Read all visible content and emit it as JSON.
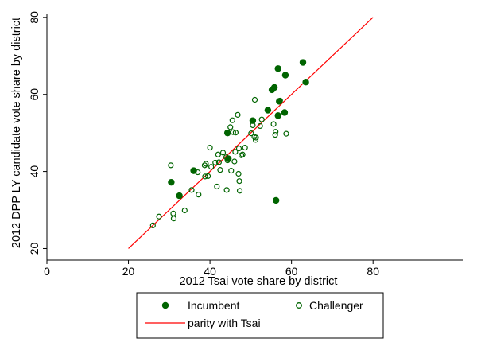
{
  "chart_data": {
    "type": "scatter",
    "xlabel": "2012 Tsai vote share by district",
    "ylabel": "2012 DPP LY candidate vote share by district",
    "xlim": [
      0,
      102
    ],
    "ylim": [
      17,
      81
    ],
    "xticks": [
      0,
      20,
      40,
      60,
      80
    ],
    "yticks": [
      20,
      40,
      60,
      80
    ],
    "grid": false,
    "legend_position": "bottom",
    "series": [
      {
        "name": "Incumbent",
        "marker": "filled-circle",
        "color": "#006400",
        "points": [
          {
            "x": 30.5,
            "y": 37.2
          },
          {
            "x": 32.5,
            "y": 33.7
          },
          {
            "x": 36.0,
            "y": 40.2
          },
          {
            "x": 44.3,
            "y": 50.0
          },
          {
            "x": 44.5,
            "y": 43.3
          },
          {
            "x": 50.5,
            "y": 53.2
          },
          {
            "x": 54.2,
            "y": 55.9
          },
          {
            "x": 55.2,
            "y": 61.2
          },
          {
            "x": 55.8,
            "y": 61.8
          },
          {
            "x": 56.2,
            "y": 32.5
          },
          {
            "x": 56.7,
            "y": 54.5
          },
          {
            "x": 56.7,
            "y": 66.7
          },
          {
            "x": 57.0,
            "y": 58.2
          },
          {
            "x": 58.3,
            "y": 55.3
          },
          {
            "x": 58.5,
            "y": 65.0
          },
          {
            "x": 62.8,
            "y": 68.3
          },
          {
            "x": 63.5,
            "y": 63.2
          }
        ]
      },
      {
        "name": "Challenger",
        "marker": "hollow-circle",
        "color": "#006400",
        "points": [
          {
            "x": 26.0,
            "y": 26.0
          },
          {
            "x": 27.5,
            "y": 28.3
          },
          {
            "x": 31.0,
            "y": 29.1
          },
          {
            "x": 31.1,
            "y": 27.8
          },
          {
            "x": 30.4,
            "y": 41.6
          },
          {
            "x": 33.8,
            "y": 29.9
          },
          {
            "x": 35.5,
            "y": 35.2
          },
          {
            "x": 37.2,
            "y": 34.0
          },
          {
            "x": 37.0,
            "y": 39.8
          },
          {
            "x": 38.7,
            "y": 41.6
          },
          {
            "x": 39.0,
            "y": 42.0
          },
          {
            "x": 38.8,
            "y": 38.7
          },
          {
            "x": 39.5,
            "y": 38.8
          },
          {
            "x": 40.0,
            "y": 46.2
          },
          {
            "x": 40.3,
            "y": 41.2
          },
          {
            "x": 41.3,
            "y": 42.3
          },
          {
            "x": 41.7,
            "y": 36.1
          },
          {
            "x": 42.0,
            "y": 44.4
          },
          {
            "x": 42.2,
            "y": 42.4
          },
          {
            "x": 42.5,
            "y": 40.4
          },
          {
            "x": 43.2,
            "y": 44.9
          },
          {
            "x": 44.0,
            "y": 43.7
          },
          {
            "x": 44.1,
            "y": 35.2
          },
          {
            "x": 44.3,
            "y": 42.9
          },
          {
            "x": 45.0,
            "y": 51.5
          },
          {
            "x": 45.2,
            "y": 40.2
          },
          {
            "x": 45.5,
            "y": 53.3
          },
          {
            "x": 45.7,
            "y": 50.2
          },
          {
            "x": 46.0,
            "y": 42.6
          },
          {
            "x": 46.2,
            "y": 45.1
          },
          {
            "x": 46.3,
            "y": 50.1
          },
          {
            "x": 46.8,
            "y": 54.7
          },
          {
            "x": 47.0,
            "y": 39.4
          },
          {
            "x": 47.1,
            "y": 46.0
          },
          {
            "x": 47.2,
            "y": 37.5
          },
          {
            "x": 47.3,
            "y": 35.0
          },
          {
            "x": 47.7,
            "y": 44.2
          },
          {
            "x": 48.0,
            "y": 44.4
          },
          {
            "x": 48.6,
            "y": 46.2
          },
          {
            "x": 50.1,
            "y": 49.9
          },
          {
            "x": 50.5,
            "y": 52.0
          },
          {
            "x": 50.9,
            "y": 49.0
          },
          {
            "x": 51.0,
            "y": 58.6
          },
          {
            "x": 51.2,
            "y": 48.2
          },
          {
            "x": 51.3,
            "y": 48.8
          },
          {
            "x": 52.3,
            "y": 51.8
          },
          {
            "x": 52.7,
            "y": 53.5
          },
          {
            "x": 55.6,
            "y": 52.3
          },
          {
            "x": 56.0,
            "y": 49.5
          },
          {
            "x": 56.1,
            "y": 50.3
          },
          {
            "x": 57.2,
            "y": 58.4
          },
          {
            "x": 58.7,
            "y": 49.8
          }
        ]
      }
    ],
    "reference_line": {
      "name": "parity with Tsai",
      "color": "#ff0000",
      "x": [
        20,
        80
      ],
      "y": [
        20,
        80
      ]
    },
    "legend": {
      "entries": [
        {
          "label": "Incumbent",
          "marker": "filled-circle"
        },
        {
          "label": "Challenger",
          "marker": "hollow-circle"
        },
        {
          "label": "parity with Tsai",
          "marker": "line"
        }
      ]
    }
  }
}
